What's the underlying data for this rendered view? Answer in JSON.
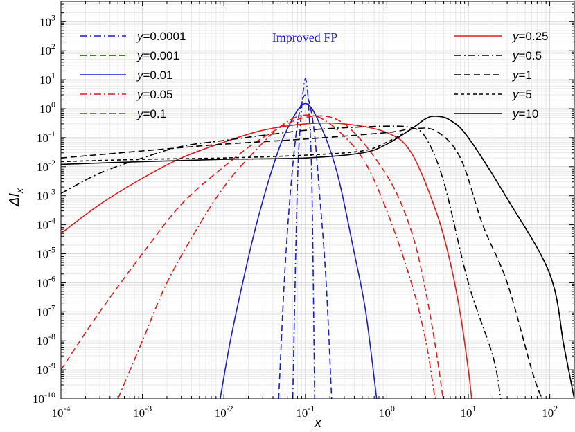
{
  "chart_data": {
    "type": "line",
    "title": "",
    "annotation": "Improved FP",
    "xlabel": "x",
    "ylabel_main": "ΔI",
    "ylabel_sub": "x",
    "xscale": "log",
    "yscale": "log",
    "xlim": [
      0.0001,
      200
    ],
    "ylim": [
      1e-10,
      5000
    ],
    "x_ticks": [
      {
        "base": "10",
        "exp": "-4"
      },
      {
        "base": "10",
        "exp": "-3"
      },
      {
        "base": "10",
        "exp": "-2"
      },
      {
        "base": "10",
        "exp": "-1"
      },
      {
        "base": "10",
        "exp": "0"
      },
      {
        "base": "10",
        "exp": "1"
      },
      {
        "base": "10",
        "exp": "2"
      }
    ],
    "y_ticks": [
      {
        "base": "10",
        "exp": "-10"
      },
      {
        "base": "10",
        "exp": "-9"
      },
      {
        "base": "10",
        "exp": "-8"
      },
      {
        "base": "10",
        "exp": "-7"
      },
      {
        "base": "10",
        "exp": "-6"
      },
      {
        "base": "10",
        "exp": "-5"
      },
      {
        "base": "10",
        "exp": "-4"
      },
      {
        "base": "10",
        "exp": "-3"
      },
      {
        "base": "10",
        "exp": "-2"
      },
      {
        "base": "10",
        "exp": "-1"
      },
      {
        "base": "10",
        "exp": "0"
      },
      {
        "base": "10",
        "exp": "1"
      },
      {
        "base": "10",
        "exp": "2"
      },
      {
        "base": "10",
        "exp": "3"
      }
    ],
    "grid": true,
    "legend_left": "top-left",
    "legend_right": "top-right",
    "series": [
      {
        "name": "y=0.0001",
        "var": "y",
        "val": "=0.0001",
        "color": "#1a1adb",
        "dash": "dashdot",
        "legend": "left",
        "x": [
          0.07,
          0.08,
          0.09,
          0.095,
          0.1,
          0.105,
          0.11,
          0.12,
          0.13
        ],
        "y": [
          1e-10,
          0.003,
          1.0,
          5.0,
          11.0,
          5.0,
          1.0,
          0.003,
          1e-10
        ]
      },
      {
        "name": "y=0.001",
        "var": "y",
        "val": "=0.001",
        "color": "#1a1adb",
        "dash": "dash",
        "legend": "left",
        "x": [
          0.047,
          0.055,
          0.065,
          0.08,
          0.1,
          0.125,
          0.15,
          0.18,
          0.21
        ],
        "y": [
          1e-10,
          1e-06,
          0.001,
          0.3,
          3.0,
          0.3,
          0.001,
          1e-06,
          1e-10
        ]
      },
      {
        "name": "y=0.01",
        "var": "y",
        "val": "=0.01",
        "color": "#1a1adb",
        "dash": "solid",
        "legend": "left",
        "x": [
          0.009,
          0.012,
          0.017,
          0.025,
          0.04,
          0.06,
          0.1,
          0.16,
          0.25,
          0.4,
          0.55,
          0.75
        ],
        "y": [
          1e-10,
          1e-08,
          1e-06,
          0.0001,
          0.01,
          0.2,
          1.5,
          0.2,
          0.005,
          1e-05,
          1e-07,
          1e-10
        ]
      },
      {
        "name": "y=0.05",
        "var": "y",
        "val": "=0.05",
        "color": "#e21b1b",
        "dash": "dashdot",
        "legend": "left",
        "x": [
          0.0005,
          0.001,
          0.002,
          0.005,
          0.01,
          0.02,
          0.05,
          0.1,
          0.2,
          0.5,
          1.0,
          2.0,
          3.0,
          3.9
        ],
        "y": [
          1e-10,
          1e-08,
          1e-06,
          0.0001,
          0.002,
          0.02,
          0.25,
          0.6,
          0.3,
          0.02,
          0.0003,
          1e-06,
          1e-08,
          1e-10
        ]
      },
      {
        "name": "y=0.1",
        "var": "y",
        "val": "=0.1",
        "color": "#e21b1b",
        "dash": "dash",
        "legend": "left",
        "x": [
          0.0001,
          0.0003,
          0.001,
          0.003,
          0.01,
          0.03,
          0.1,
          0.3,
          1.0,
          2.0,
          3.0,
          4.0,
          4.9
        ],
        "y": [
          1e-09,
          1e-07,
          1e-05,
          0.0005,
          0.01,
          0.1,
          0.5,
          0.3,
          0.005,
          6e-05,
          5e-07,
          5e-09,
          1e-10
        ]
      },
      {
        "name": "y=0.25",
        "var": "y",
        "val": "=0.25",
        "color": "#e21b1b",
        "dash": "solid",
        "legend": "right",
        "x": [
          0.0001,
          0.0003,
          0.001,
          0.003,
          0.01,
          0.03,
          0.1,
          0.3,
          1.0,
          2.0,
          4.0,
          6.0,
          8.0,
          10.0,
          11.0
        ],
        "y": [
          5e-05,
          0.0005,
          0.004,
          0.02,
          0.07,
          0.18,
          0.3,
          0.3,
          0.15,
          0.03,
          0.0003,
          5e-06,
          8e-08,
          1e-09,
          1e-10
        ]
      },
      {
        "name": "y=0.5",
        "var": "y",
        "val": "=0.5",
        "color": "#000000",
        "dash": "dashdot",
        "legend": "right",
        "x": [
          0.0001,
          0.0003,
          0.001,
          0.003,
          0.01,
          0.03,
          0.1,
          0.3,
          1.0,
          2.0,
          3.0,
          5.0,
          10.0,
          20.0,
          25.0
        ],
        "y": [
          0.0012,
          0.006,
          0.02,
          0.05,
          0.08,
          0.12,
          0.18,
          0.22,
          0.25,
          0.22,
          0.1,
          0.003,
          1e-06,
          3e-09,
          1e-10
        ]
      },
      {
        "name": "y=1",
        "var": "y",
        "val": "=1",
        "color": "#000000",
        "dash": "dash",
        "legend": "right",
        "x": [
          0.0001,
          0.001,
          0.01,
          0.1,
          1.0,
          2.0,
          4.0,
          8.0,
          15.0,
          30.0,
          60.0,
          80.0
        ],
        "y": [
          0.02,
          0.035,
          0.06,
          0.09,
          0.15,
          0.2,
          0.17,
          0.02,
          0.0001,
          1e-06,
          1e-09,
          1e-10
        ]
      },
      {
        "name": "y=5",
        "var": "y",
        "val": "=5",
        "color": "#000000",
        "dash": "shortdash",
        "legend": "right",
        "x": [
          0.0001,
          0.001,
          0.01,
          0.1,
          0.5,
          1.0,
          2.0,
          3.0,
          4.0,
          6.0,
          10.0,
          30.0,
          100.0,
          150.0,
          200.0
        ],
        "y": [
          0.015,
          0.018,
          0.02,
          0.025,
          0.035,
          0.07,
          0.2,
          0.45,
          0.55,
          0.4,
          0.1,
          0.0008,
          2e-06,
          6e-09,
          1e-10
        ]
      },
      {
        "name": "y=10",
        "var": "y",
        "val": "=10",
        "color": "#000000",
        "dash": "solid",
        "legend": "right",
        "x": [
          0.0001,
          0.001,
          0.01,
          0.1,
          0.5,
          1.0,
          2.0,
          3.0,
          4.0,
          6.0,
          10.0,
          30.0,
          100.0,
          150.0,
          200.0
        ],
        "y": [
          0.012,
          0.015,
          0.018,
          0.02,
          0.03,
          0.06,
          0.2,
          0.45,
          0.55,
          0.4,
          0.1,
          0.0008,
          2e-06,
          6e-09,
          1e-10
        ]
      }
    ]
  }
}
